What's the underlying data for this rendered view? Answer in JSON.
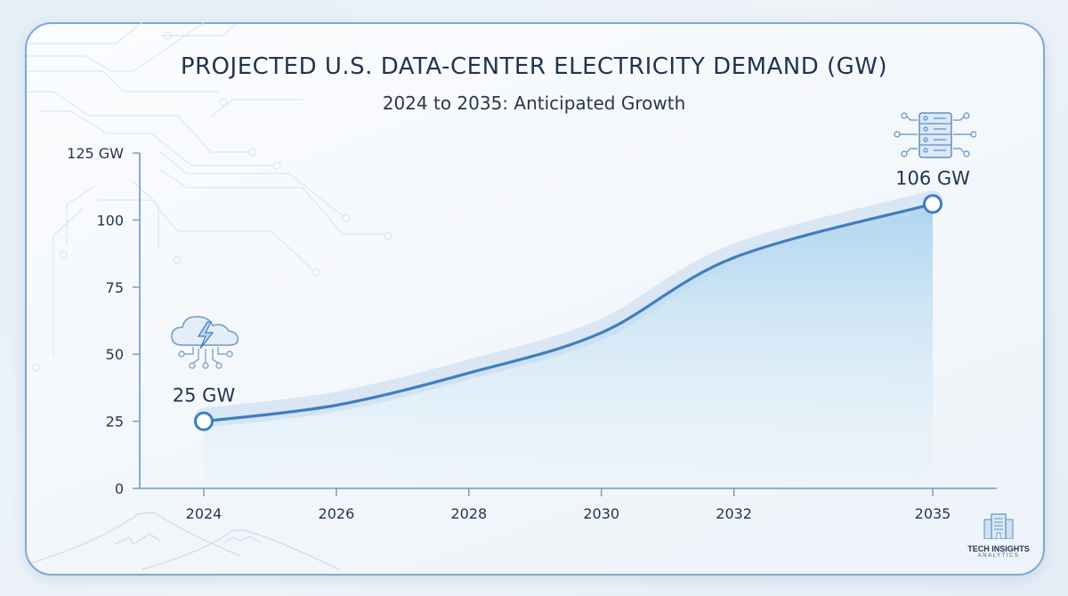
{
  "header": {
    "title": "PROJECTED U.S. DATA-CENTER ELECTRICITY DEMAND (GW)",
    "subtitle": "2024 to 2035: Anticipated Growth"
  },
  "annotations": {
    "start_label": "25 GW",
    "end_label": "106 GW",
    "start_icon": "cloud-lightning-circuit-icon",
    "end_icon": "server-rack-circuit-icon"
  },
  "brand": {
    "name": "TECH INSIGHTS",
    "sub": "ANALYTICS",
    "icon": "office-building-icon"
  },
  "colors": {
    "line": "#3d7fc1",
    "fill_top": "#a9d3ee",
    "fill_bottom": "#e6f2fa",
    "axis": "#6f98c2",
    "text": "#1f3550",
    "marker_fill": "#ffffff"
  },
  "chart_data": {
    "type": "area",
    "title": "PROJECTED U.S. DATA-CENTER ELECTRICITY DEMAND (GW)",
    "subtitle": "2024 to 2035: Anticipated Growth",
    "xlabel": "",
    "ylabel": "GW",
    "x": [
      2024,
      2026,
      2028,
      2030,
      2032,
      2035
    ],
    "x_tick_labels": [
      "2024",
      "2026",
      "2028",
      "2030",
      "2032",
      "2035"
    ],
    "y_ticks": [
      0,
      25,
      50,
      75,
      100,
      125
    ],
    "y_tick_labels": [
      "0",
      "25",
      "50",
      "75",
      "100",
      "125 GW"
    ],
    "xlim": [
      2024,
      2035
    ],
    "ylim": [
      0,
      125
    ],
    "grid": false,
    "legend": "none",
    "series": [
      {
        "name": "Electricity demand (GW)",
        "values": [
          25,
          31,
          43,
          58,
          86,
          106
        ]
      }
    ],
    "data_labels": [
      {
        "x": 2024,
        "y": 25,
        "text": "25 GW"
      },
      {
        "x": 2035,
        "y": 106,
        "text": "106 GW"
      }
    ]
  }
}
